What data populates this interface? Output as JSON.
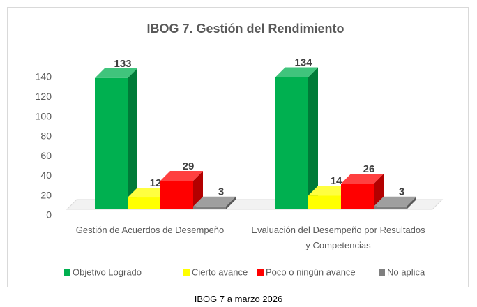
{
  "chart_data": {
    "type": "bar3d",
    "title": "IBOG 7. Gestión del Rendimiento",
    "categories": [
      "Gestión de Acuerdos de Desempeño",
      "Evaluación del Desempeño por Resultados y Competencias"
    ],
    "series": [
      {
        "name": "Objetivo Logrado",
        "color": "#00b050",
        "values": [
          133,
          134
        ]
      },
      {
        "name": "Cierto avance",
        "color": "#ffff00",
        "values": [
          12,
          14
        ]
      },
      {
        "name": "Poco o ningún avance",
        "color": "#ff0000",
        "values": [
          29,
          26
        ]
      },
      {
        "name": "No aplica",
        "color": "#7f7f7f",
        "values": [
          3,
          3
        ]
      }
    ],
    "ylim": [
      0,
      140
    ],
    "yticks": [
      0,
      20,
      40,
      60,
      80,
      100,
      120,
      140
    ],
    "legend": "bottom"
  },
  "caption": "IBOG 7 a marzo 2026"
}
